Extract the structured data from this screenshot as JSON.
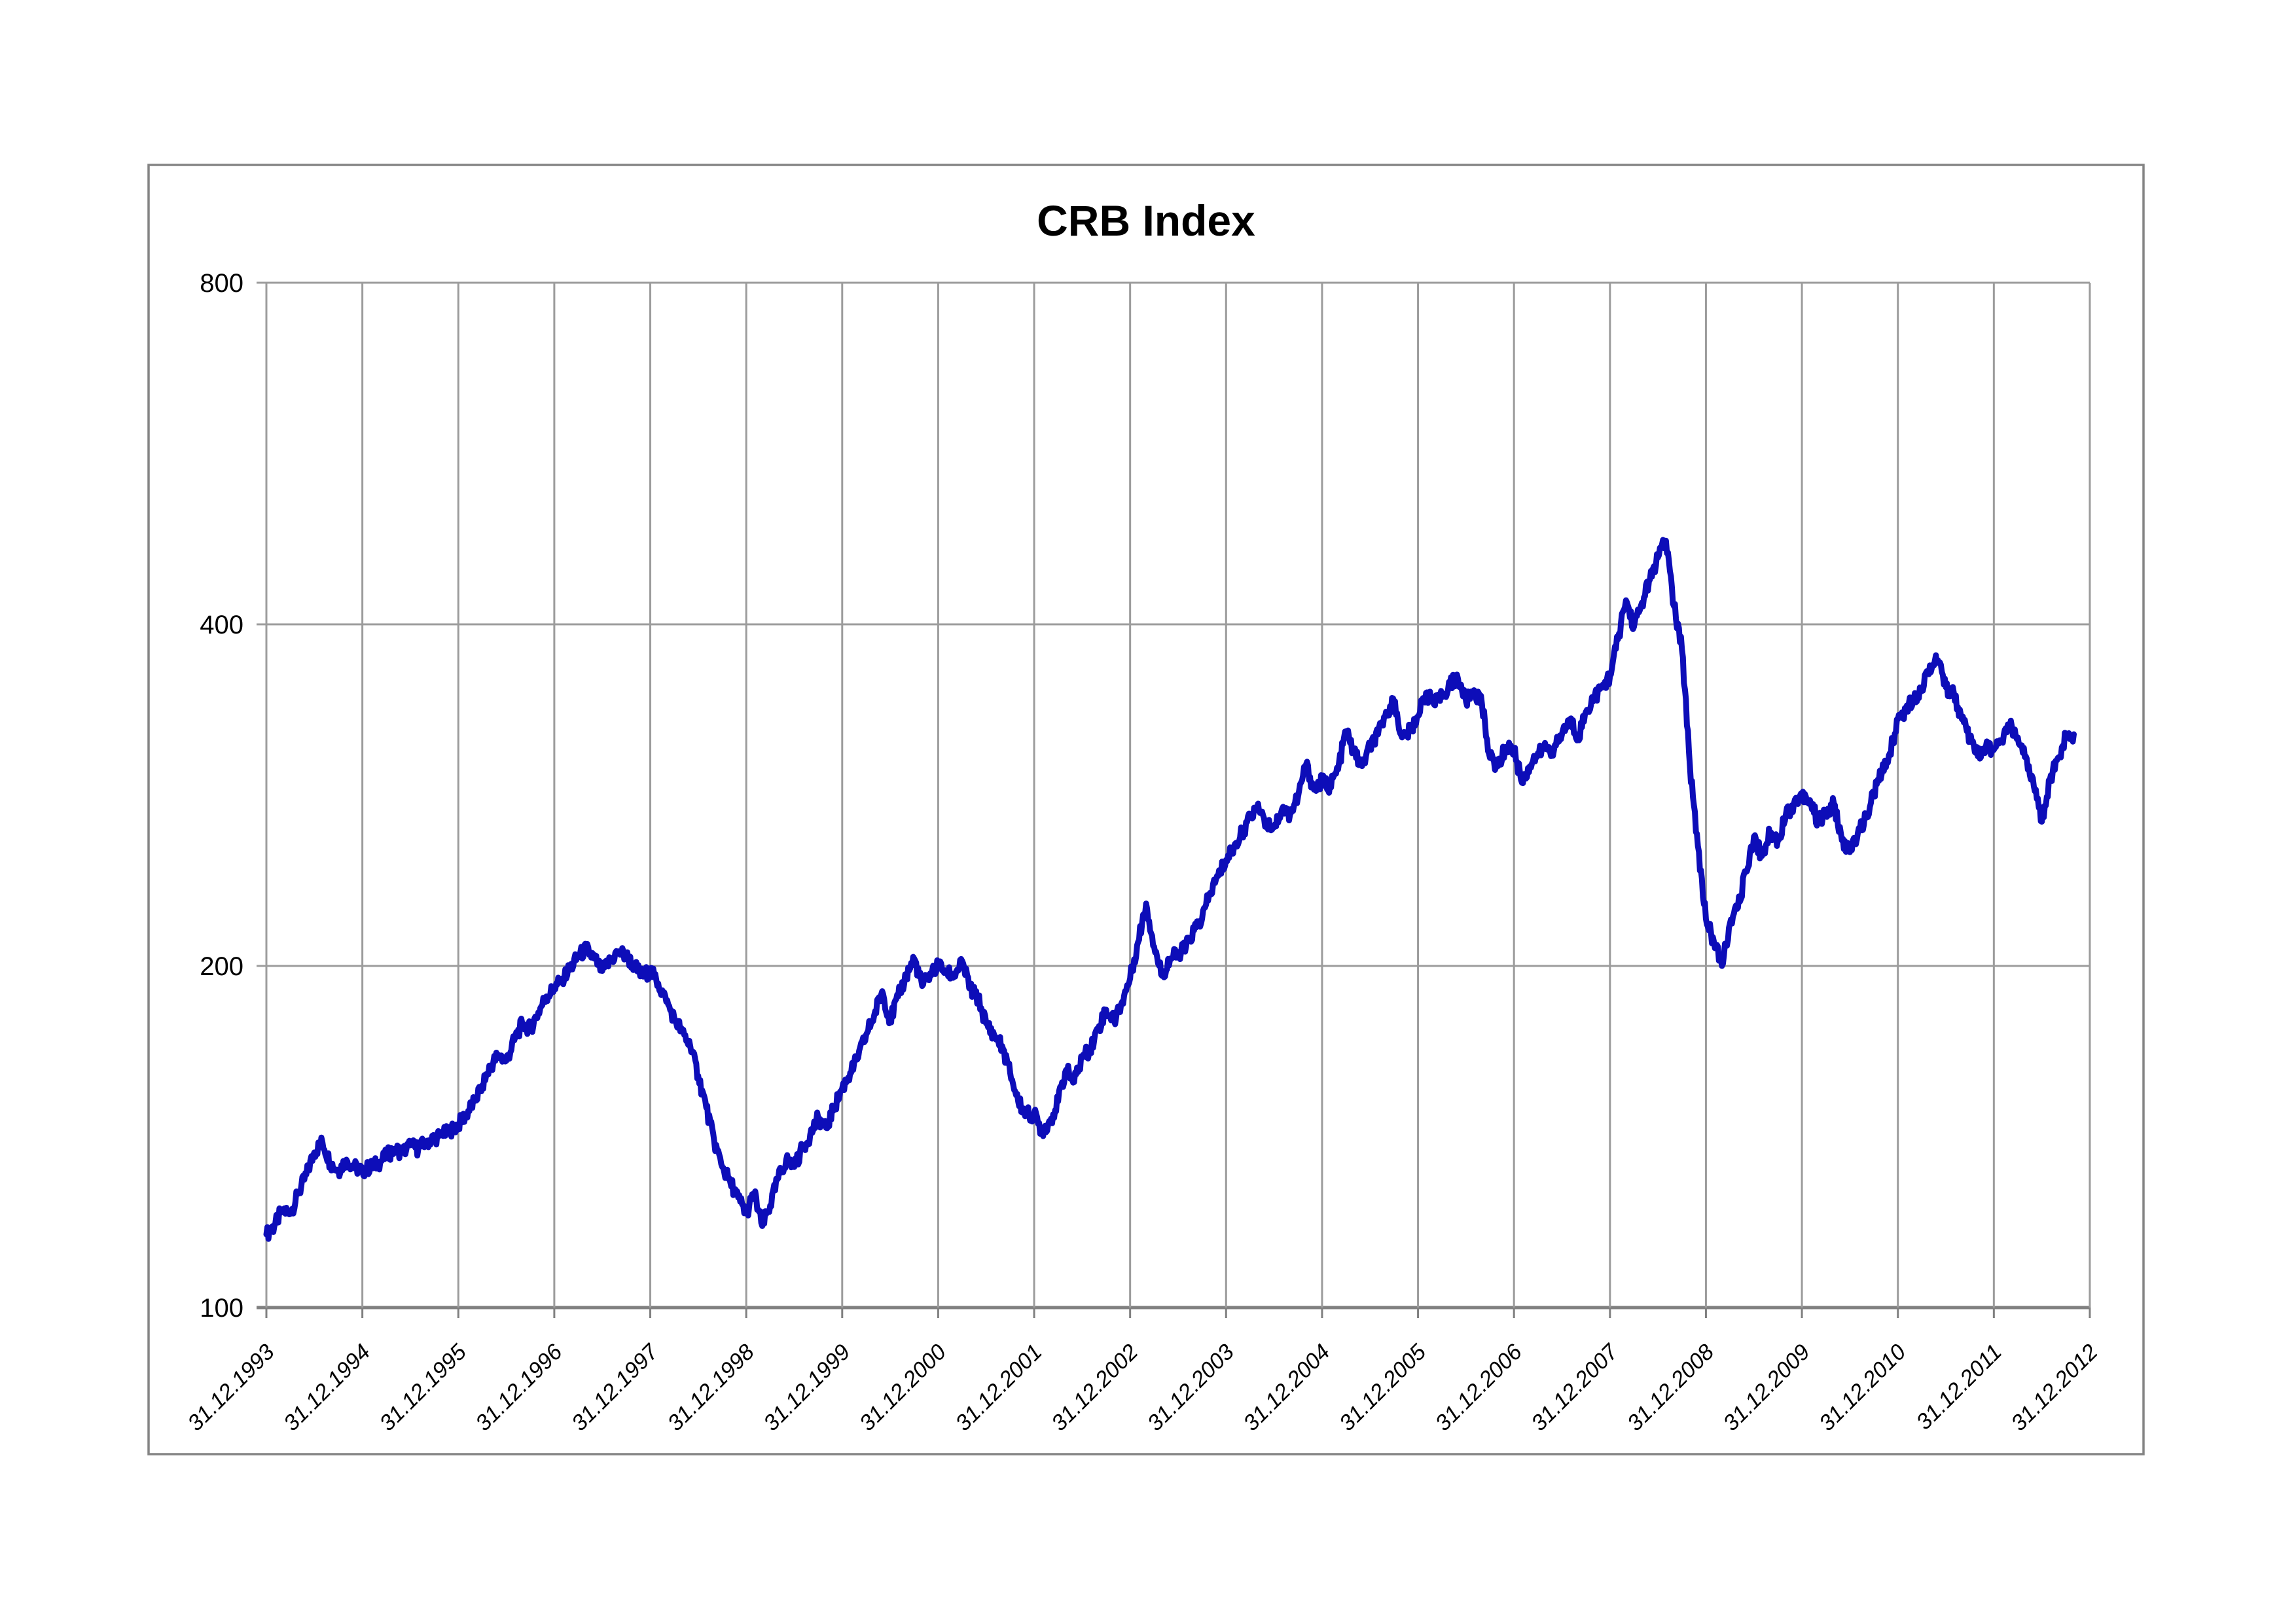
{
  "title": "CRB Index",
  "chart_data": {
    "type": "line",
    "title": "CRB Index",
    "y_axis": {
      "scale": "log2",
      "min": 100,
      "max": 800,
      "ticks": [
        800,
        400,
        200,
        100
      ],
      "gridlines": true
    },
    "x_axis": {
      "tick_labels": [
        "31.12.1993",
        "31.12.1994",
        "31.12.1995",
        "31.12.1996",
        "31.12.1997",
        "31.12.1998",
        "31.12.1999",
        "31.12.2000",
        "31.12.2001",
        "31.12.2002",
        "31.12.2003",
        "31.12.2004",
        "31.12.2005",
        "31.12.2006",
        "31.12.2007",
        "31.12.2008",
        "31.12.2009",
        "31.12.2010",
        "31.12.2011",
        "31.12.2012"
      ],
      "label_rotation_deg": -45,
      "gridlines": true
    },
    "legend": "none",
    "colors": {
      "line": "#0d0db8",
      "gridline": "#9c9c9c",
      "axis": "#808080",
      "border": "#848484",
      "background": "#ffffff",
      "title": "#000000"
    },
    "series": [
      {
        "name": "CRB Index",
        "frequency": "monthly",
        "start": "1993-12",
        "end": "2012-10",
        "values": [
          116,
          118,
          122,
          121,
          126,
          131,
          137,
          140,
          134,
          132,
          135,
          133,
          132,
          133,
          134,
          136,
          138,
          137,
          139,
          138,
          140,
          141,
          142,
          143,
          145,
          148,
          152,
          157,
          163,
          167,
          165,
          172,
          178,
          176,
          182,
          188,
          191,
          195,
          199,
          204,
          207,
          203,
          198,
          202,
          206,
          204,
          200,
          196,
          198,
          193,
          186,
          180,
          175,
          170,
          160,
          150,
          140,
          133,
          129,
          125,
          121,
          126,
          118,
          123,
          130,
          135,
          133,
          138,
          142,
          147,
          144,
          150,
          156,
          161,
          166,
          174,
          181,
          190,
          179,
          188,
          196,
          203,
          192,
          197,
          200,
          198,
          196,
          202,
          191,
          187,
          178,
          174,
          170,
          161,
          152,
          148,
          148,
          143,
          146,
          152,
          162,
          158,
          166,
          169,
          176,
          183,
          179,
          186,
          195,
          210,
          227,
          208,
          196,
          203,
          205,
          208,
          215,
          220,
          232,
          240,
          248,
          255,
          262,
          270,
          278,
          268,
          265,
          275,
          272,
          282,
          301,
          286,
          291,
          288,
          298,
          322,
          308,
          300,
          312,
          320,
          335,
          342,
          318,
          322,
          332,
          348,
          340,
          345,
          355,
          358,
          342,
          350,
          340,
          305,
          300,
          312,
          310,
          290,
          300,
          308,
          312,
          310,
          320,
          330,
          318,
          335,
          345,
          352,
          360,
          388,
          420,
          398,
          418,
          438,
          458,
          474,
          415,
          380,
          300,
          255,
          220,
          210,
          200,
          218,
          225,
          242,
          260,
          250,
          262,
          258,
          272,
          278,
          284,
          280,
          268,
          272,
          278,
          258,
          252,
          262,
          270,
          284,
          296,
          308,
          330,
          336,
          344,
          352,
          368,
          372,
          352,
          348,
          330,
          316,
          306,
          312,
          310,
          315,
          325,
          318,
          306,
          288,
          268,
          292,
          305,
          318,
          320
        ]
      }
    ]
  }
}
